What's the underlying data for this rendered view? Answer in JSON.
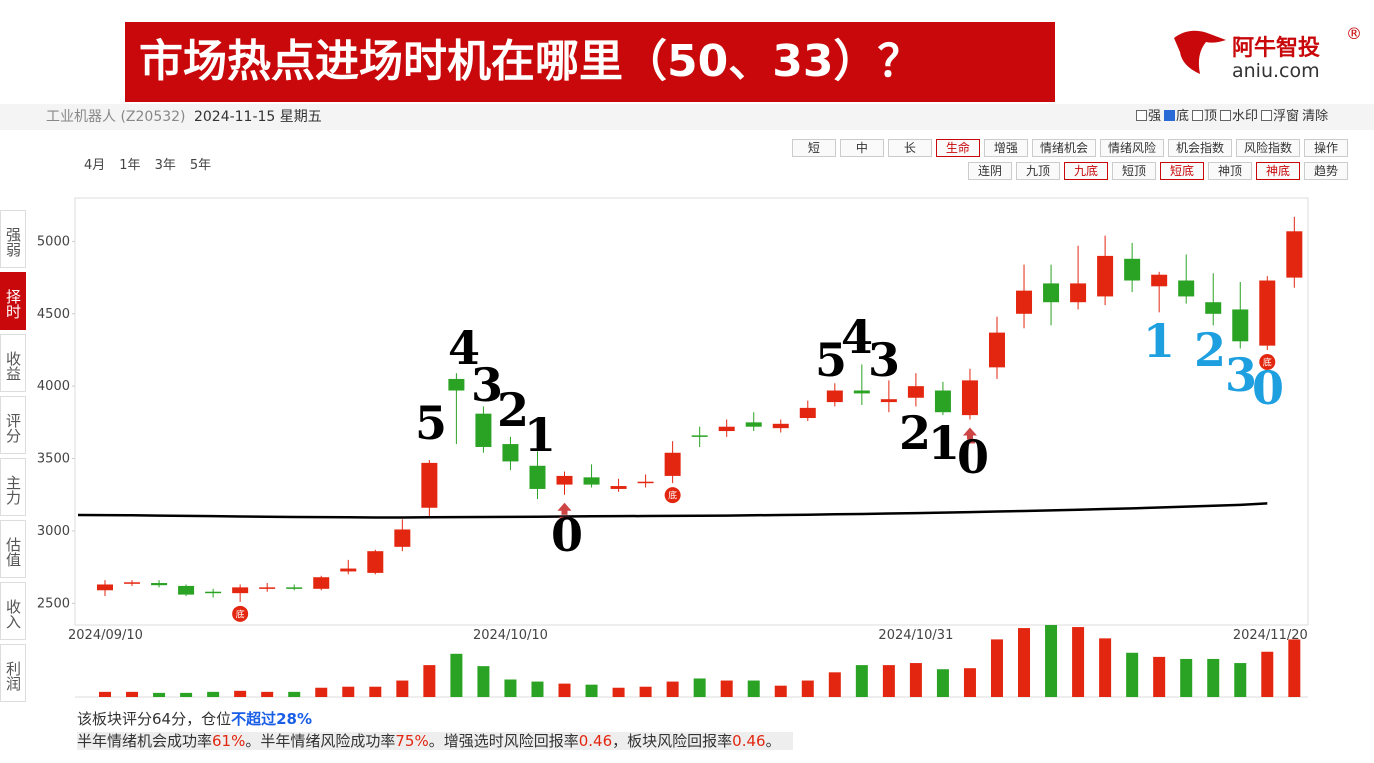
{
  "banner": {
    "title": "市场热点进场时机在哪里（50、33）？"
  },
  "logo": {
    "name": "阿牛智投",
    "mark": "®",
    "site": "aniu.com"
  },
  "header": {
    "sector": "工业机器人 (Z20532)",
    "date": "2024-11-15 星期五",
    "options": [
      {
        "label": "强",
        "checked": false
      },
      {
        "label": "底",
        "checked": true
      },
      {
        "label": "顶",
        "checked": false
      },
      {
        "label": "水印",
        "checked": false
      },
      {
        "label": "浮窗",
        "checked": false
      }
    ],
    "clear": "清除"
  },
  "periods": [
    "4月",
    "1年",
    "3年",
    "5年"
  ],
  "buttons_row1": [
    {
      "label": "短",
      "active": false
    },
    {
      "label": "中",
      "active": false
    },
    {
      "label": "长",
      "active": false
    },
    {
      "label": "生命",
      "active": true
    },
    {
      "label": "增强",
      "active": false
    },
    {
      "label": "情绪机会",
      "active": false
    },
    {
      "label": "情绪风险",
      "active": false
    },
    {
      "label": "机会指数",
      "active": false
    },
    {
      "label": "风险指数",
      "active": false
    },
    {
      "label": "操作",
      "active": false
    }
  ],
  "buttons_row2": [
    {
      "label": "连阴",
      "active": false
    },
    {
      "label": "九顶",
      "active": false
    },
    {
      "label": "九底",
      "active": true
    },
    {
      "label": "短顶",
      "active": false
    },
    {
      "label": "短底",
      "active": true
    },
    {
      "label": "神顶",
      "active": false
    },
    {
      "label": "神底",
      "active": true
    },
    {
      "label": "趋势",
      "active": false
    }
  ],
  "tabs": [
    {
      "label": "强弱",
      "active": false
    },
    {
      "label": "择时",
      "active": true
    },
    {
      "label": "收益",
      "active": false
    },
    {
      "label": "评分",
      "active": false
    },
    {
      "label": "主力",
      "active": false
    },
    {
      "label": "估值",
      "active": false
    },
    {
      "label": "收入",
      "active": false
    },
    {
      "label": "利润",
      "active": false
    }
  ],
  "chart_data": {
    "type": "candlestick",
    "categories": [
      "2024/09/10",
      null,
      null,
      null,
      null,
      null,
      null,
      null,
      null,
      null,
      null,
      null,
      null,
      null,
      null,
      "2024/10/10",
      null,
      null,
      null,
      null,
      null,
      null,
      null,
      null,
      null,
      null,
      null,
      null,
      null,
      null,
      "2024/10/31",
      null,
      null,
      null,
      null,
      null,
      null,
      null,
      null,
      null,
      null,
      null,
      null,
      null,
      "2024/11/20"
    ],
    "open": [
      2590,
      2635,
      2640,
      2620,
      2580,
      2570,
      2600,
      2610,
      2600,
      2720,
      2710,
      2890,
      3160,
      4050,
      3810,
      3600,
      3450,
      3320,
      3370,
      3290,
      3330,
      3380,
      3660,
      3690,
      3750,
      3710,
      3780,
      3890,
      3970,
      3890,
      3920,
      3970,
      3800,
      4130,
      4500,
      4710,
      4580,
      4620,
      4880,
      4690,
      4730,
      4580,
      4530,
      4280,
      4750
    ],
    "high": [
      2660,
      2660,
      2660,
      2630,
      2600,
      2630,
      2640,
      2630,
      2690,
      2800,
      2870,
      3080,
      3490,
      4090,
      3860,
      3650,
      3550,
      3410,
      3460,
      3360,
      3390,
      3620,
      3720,
      3770,
      3820,
      3770,
      3900,
      4020,
      4150,
      4040,
      4090,
      4030,
      4120,
      4480,
      4840,
      4840,
      4970,
      5040,
      4990,
      4790,
      4910,
      4780,
      4720,
      4760,
      5170
    ],
    "low": [
      2550,
      2620,
      2610,
      2550,
      2540,
      2510,
      2580,
      2590,
      2590,
      2700,
      2700,
      2860,
      3100,
      3600,
      3540,
      3420,
      3220,
      3250,
      3300,
      3270,
      3300,
      3330,
      3580,
      3650,
      3690,
      3680,
      3760,
      3860,
      3870,
      3820,
      3860,
      3800,
      3770,
      4050,
      4400,
      4420,
      4530,
      4560,
      4650,
      4510,
      4570,
      4420,
      4260,
      4250,
      4680
    ],
    "close": [
      2630,
      2645,
      2625,
      2560,
      2570,
      2610,
      2610,
      2600,
      2680,
      2740,
      2860,
      3010,
      3470,
      3970,
      3580,
      3480,
      3290,
      3380,
      3320,
      3310,
      3340,
      3540,
      3650,
      3720,
      3720,
      3740,
      3850,
      3970,
      3950,
      3910,
      4000,
      3820,
      4040,
      4370,
      4660,
      4580,
      4710,
      4900,
      4730,
      4770,
      4620,
      4500,
      4310,
      4730,
      5070
    ],
    "volume": [
      5,
      5,
      4,
      4,
      5,
      6,
      5,
      5,
      9,
      10,
      10,
      16,
      31,
      42,
      30,
      17,
      15,
      13,
      12,
      9,
      10,
      15,
      18,
      16,
      16,
      11,
      16,
      24,
      31,
      31,
      33,
      27,
      28,
      56,
      67,
      70,
      68,
      57,
      43,
      39,
      37,
      37,
      33,
      44,
      56
    ],
    "ma": [
      3110,
      3108,
      3106,
      3104,
      3102,
      3100,
      3098,
      3096,
      3095,
      3094,
      3093,
      3093,
      3094,
      3095,
      3096,
      3097,
      3098,
      3100,
      3101,
      3102,
      3103,
      3104,
      3105,
      3106,
      3108,
      3110,
      3112,
      3115,
      3117,
      3120,
      3123,
      3126,
      3130,
      3134,
      3138,
      3142,
      3146,
      3151,
      3156,
      3162,
      3168,
      3174,
      3180,
      3190,
      null
    ],
    "up_color": "#e3260f",
    "down_color": "#2aa224",
    "ma_color": "#000000",
    "ylim": [
      2350,
      5300
    ],
    "yticks": [
      2500,
      3000,
      3500,
      4000,
      4500,
      5000
    ],
    "grid": false,
    "bottom_marker": "底",
    "bottom_markers": [
      5,
      21,
      43
    ],
    "arrows": [
      17,
      32
    ],
    "annotations": [
      {
        "text": "5",
        "color": "#000000"
      },
      {
        "text": "4",
        "color": "#000000"
      },
      {
        "text": "3",
        "color": "#000000"
      },
      {
        "text": "2",
        "color": "#000000"
      },
      {
        "text": "1",
        "color": "#000000"
      },
      {
        "text": "0",
        "color": "#000000"
      },
      {
        "text": "5",
        "color": "#000000"
      },
      {
        "text": "4",
        "color": "#000000"
      },
      {
        "text": "3",
        "color": "#000000"
      },
      {
        "text": "2",
        "color": "#000000"
      },
      {
        "text": "1",
        "color": "#000000"
      },
      {
        "text": "0",
        "color": "#000000"
      },
      {
        "text": "1",
        "color": "#1ea0e0"
      },
      {
        "text": "2",
        "color": "#1ea0e0"
      },
      {
        "text": "3",
        "color": "#1ea0e0"
      },
      {
        "text": "0",
        "color": "#1ea0e0"
      }
    ]
  },
  "footer": {
    "line1": [
      "该板块评分64分，仓位",
      "不超过28%"
    ],
    "line2": [
      "半年情绪机会成功率",
      "61%",
      "。半年情绪风险成功率",
      "75%",
      "。增强选时风险回报率",
      "0.46",
      "，板块风险回报率",
      "0.46",
      "。"
    ]
  }
}
